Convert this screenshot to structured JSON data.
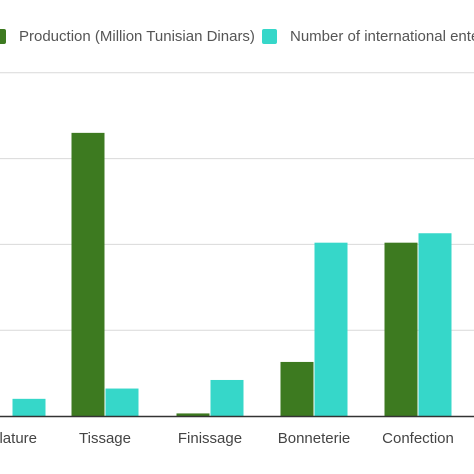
{
  "chart_data": {
    "type": "bar",
    "categories": [
      "Filature",
      "Tissage",
      "Finissage",
      "Bonneterie",
      "Confection"
    ],
    "series": [
      {
        "name": "Production (Million Tunisian Dinars)",
        "color": "#3d7a20",
        "values": [
          null,
          330,
          3,
          63,
          202
        ]
      },
      {
        "name": "Number of international enterprises",
        "color": "#36d7c9",
        "values": [
          20,
          32,
          42,
          202,
          213
        ]
      }
    ],
    "ylim": [
      0,
      400
    ],
    "grid": true,
    "legend_position": "top"
  }
}
